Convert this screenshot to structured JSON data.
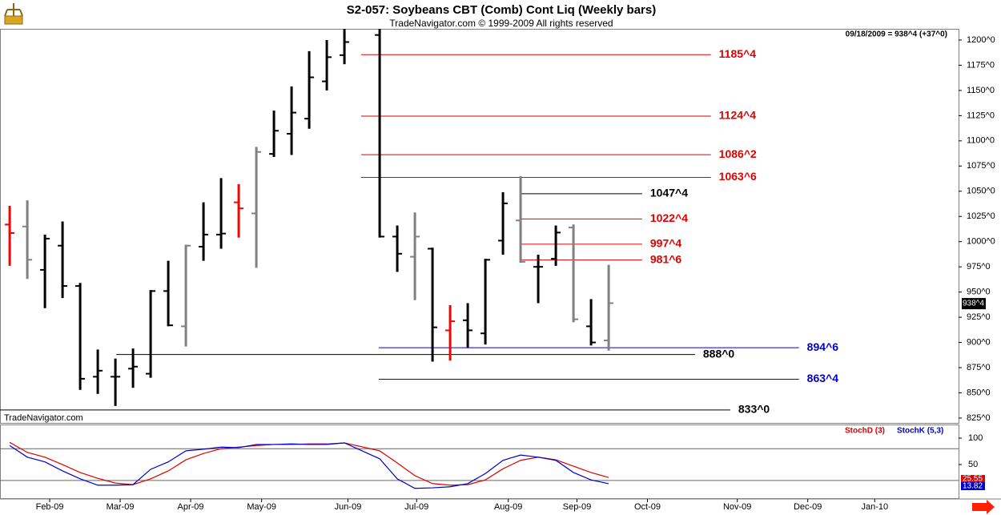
{
  "header": {
    "title": "S2-057:  Soybeans CBT (Comb) Cont Liq  (Weekly bars)",
    "copyright": "TradeNavigator.com © 1999-2009 All rights reserved",
    "quote": "09/18/2009 = 938^4 (+37^0)",
    "watermark": "TradeNavigator.com"
  },
  "chart_data": [
    {
      "type": "ohlc",
      "x": [
        0,
        1,
        2,
        3,
        4,
        5,
        6,
        7,
        8,
        9,
        10,
        11,
        12,
        13,
        14,
        15,
        16,
        17,
        18,
        19,
        21,
        22,
        23,
        24,
        25,
        26,
        27,
        28,
        29,
        30,
        31,
        32,
        33,
        34
      ],
      "open": [
        1017,
        1015,
        972,
        996,
        956,
        866,
        866,
        874,
        869,
        951,
        916,
        995,
        1007,
        1039,
        1028,
        1087,
        1107,
        1122,
        1159,
        1185,
        1205,
        1005,
        985,
        993,
        912,
        922,
        909,
        1001,
        1021,
        975,
        983,
        1014,
        916,
        902
      ],
      "high": [
        1035.5,
        1041,
        1007,
        1020,
        959,
        893,
        884,
        894,
        952,
        981,
        997,
        1039,
        1063,
        1057,
        1094,
        1130,
        1154,
        1189,
        1200,
        1211,
        1211,
        1016,
        1029,
        994,
        937,
        939,
        983,
        1049,
        1065,
        987,
        1016,
        1017,
        943,
        977
      ],
      "low": [
        976,
        963,
        934,
        944,
        853,
        849,
        837,
        855,
        865,
        916,
        896,
        981,
        993,
        1004,
        974,
        1084,
        1086,
        1112,
        1150,
        1176,
        1004,
        970,
        942,
        881,
        882,
        895,
        898,
        987,
        979,
        939,
        976,
        920,
        897,
        892
      ],
      "close": [
        1008.5,
        982,
        1003,
        956,
        864,
        872,
        866,
        876,
        951,
        917,
        996,
        1007,
        1008,
        1033,
        1089,
        1110,
        1128,
        1163,
        1183,
        1198,
        1005,
        988,
        1005,
        915,
        921,
        912,
        982,
        1038,
        980,
        975,
        1009,
        923,
        900,
        939
      ],
      "colors": [
        "#ff0000",
        "#808080",
        "#000000",
        "#000000",
        "#000000",
        "#000000",
        "#000000",
        "#000000",
        "#000000",
        "#000000",
        "#808080",
        "#000000",
        "#000000",
        "#ff0000",
        "#808080",
        "#000000",
        "#000000",
        "#000000",
        "#000000",
        "#000000",
        "#000000",
        "#000000",
        "#808080",
        "#000000",
        "#ff0000",
        "#000000",
        "#000000",
        "#000000",
        "#808080",
        "#000000",
        "#000000",
        "#808080",
        "#000000",
        "#808080"
      ],
      "xlim": [
        -0.55,
        53.86
      ],
      "xticks": [
        {
          "value": 2.27,
          "label": "Feb-09"
        },
        {
          "value": 6.27,
          "label": "Mar-09"
        },
        {
          "value": 10.27,
          "label": "Apr-09"
        },
        {
          "value": 14.3,
          "label": "May-09"
        },
        {
          "value": 19.2,
          "label": "Jun-09"
        },
        {
          "value": 23.1,
          "label": "Jul-09"
        },
        {
          "value": 28.3,
          "label": "Aug-09"
        },
        {
          "value": 32.2,
          "label": "Sep-09"
        },
        {
          "value": 36.2,
          "label": "Oct-09"
        },
        {
          "value": 41.3,
          "label": "Nov-09"
        },
        {
          "value": 45.3,
          "label": "Dec-09"
        },
        {
          "value": 49.1,
          "label": "Jan-10"
        }
      ],
      "ylim": [
        820.2,
        1211.1
      ],
      "yticks": [
        {
          "value": 825,
          "label": "825^0"
        },
        {
          "value": 850,
          "label": "850^0"
        },
        {
          "value": 875,
          "label": "875^0"
        },
        {
          "value": 900,
          "label": "900^0"
        },
        {
          "value": 925,
          "label": "925^0"
        },
        {
          "value": 950,
          "label": "950^0"
        },
        {
          "value": 975,
          "label": "975^0"
        },
        {
          "value": 1000,
          "label": "1000^0"
        },
        {
          "value": 1025,
          "label": "1025^0"
        },
        {
          "value": 1050,
          "label": "1050^0"
        },
        {
          "value": 1075,
          "label": "1075^0"
        },
        {
          "value": 1100,
          "label": "1100^0"
        },
        {
          "value": 1125,
          "label": "1125^0"
        },
        {
          "value": 1150,
          "label": "1150^0"
        },
        {
          "value": 1175,
          "label": "1175^0"
        },
        {
          "value": 1200,
          "label": "1200^0"
        }
      ],
      "last_price": {
        "value": 938.5,
        "label": "938^4"
      },
      "levels": [
        {
          "value": 1185.5,
          "label": "1185^4",
          "color": "#e00000",
          "start": 19.95,
          "end": 39.8
        },
        {
          "value": 1124.5,
          "label": "1124^4",
          "color": "#e00000",
          "start": 19.95,
          "end": 39.8
        },
        {
          "value": 1086.25,
          "label": "1086^2",
          "color": "#e00000",
          "start": 19.95,
          "end": 39.8
        },
        {
          "value": 1063.75,
          "label": "1063^6",
          "color": "#e00000",
          "start": 19.95,
          "end": 39.8
        },
        {
          "value": 1047.5,
          "label": "1047^4",
          "color": "#000000",
          "start": 29,
          "end": 35.9
        },
        {
          "value": 1022.5,
          "label": "1022^4",
          "color": "#e00000",
          "start": 29,
          "end": 35.9
        },
        {
          "value": 997.5,
          "label": "997^4",
          "color": "#e00000",
          "start": 29,
          "end": 35.9
        },
        {
          "value": 981.75,
          "label": "981^6",
          "color": "#e00000",
          "start": 29,
          "end": 35.9
        },
        {
          "value": 894.75,
          "label": "894^6",
          "color": "#0000cc",
          "start": 20.95,
          "end": 44.8
        },
        {
          "value": 888,
          "label": "888^0",
          "color": "#000000",
          "start": 6.05,
          "end": 38.9
        },
        {
          "value": 863.5,
          "label": "863^4",
          "color": "#0000cc",
          "start": 20.95,
          "end": 44.8
        },
        {
          "value": 833,
          "label": "833^0",
          "color": "#000000",
          "start": -0.55,
          "end": 40.9
        }
      ]
    },
    {
      "type": "line",
      "x": [
        0,
        1,
        2,
        3,
        4,
        5,
        6,
        7,
        8,
        9,
        10,
        11,
        12,
        13,
        14,
        15,
        16,
        17,
        18,
        19,
        21,
        22,
        23,
        24,
        25,
        26,
        27,
        28,
        29,
        30,
        31,
        32,
        33,
        34
      ],
      "xlim": [
        -0.55,
        53.86
      ],
      "ylim": [
        -13.6,
        125.8
      ],
      "yticks": [
        50,
        100
      ],
      "levels": [
        20,
        80
      ],
      "series": [
        {
          "name": "StochD (3)",
          "color": "#e00000",
          "values": [
            92,
            73,
            64,
            50,
            35,
            24,
            15,
            12,
            23,
            38,
            59,
            71,
            80,
            83,
            86,
            88,
            88,
            89,
            89,
            91,
            76,
            53,
            29,
            14,
            11,
            12,
            21,
            42,
            58,
            64,
            59,
            47,
            35,
            25.55
          ]
        },
        {
          "name": "StochK (5,3)",
          "color": "#0000cc",
          "values": [
            86,
            64,
            55,
            38,
            23,
            11,
            11,
            12,
            41,
            55,
            76,
            79,
            83,
            82,
            88,
            88,
            89,
            88,
            88,
            91,
            61,
            23,
            5,
            6,
            8,
            14,
            33,
            58,
            68,
            64,
            58,
            35,
            21,
            13.82
          ]
        }
      ]
    }
  ]
}
